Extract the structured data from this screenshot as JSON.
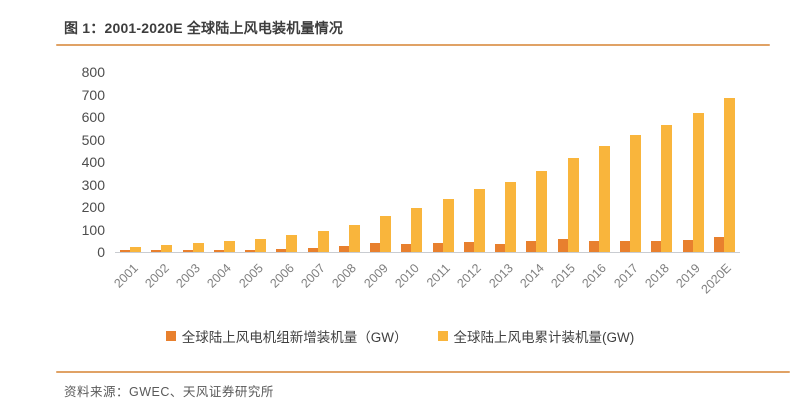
{
  "figure": {
    "title": "图 1：2001-2020E 全球陆上风电装机量情况",
    "source": "资料来源：GWEC、天风证券研究所",
    "rule_color": "#e0a265"
  },
  "chart_data": {
    "type": "bar",
    "title": "图 1：2001-2020E 全球陆上风电装机量情况",
    "categories": [
      "2001",
      "2002",
      "2003",
      "2004",
      "2005",
      "2006",
      "2007",
      "2008",
      "2009",
      "2010",
      "2011",
      "2012",
      "2013",
      "2014",
      "2015",
      "2016",
      "2017",
      "2018",
      "2019",
      "2020E"
    ],
    "series": [
      {
        "name": "全球陆上风电机组新增装机量（GW）",
        "color": "#e8802e",
        "values": [
          7,
          7,
          8,
          8,
          11,
          15,
          20,
          27,
          38,
          36,
          41,
          44,
          36,
          48,
          59,
          50,
          47,
          47,
          54,
          65
        ]
      },
      {
        "name": "全球陆上风电累计装机量(GW)",
        "color": "#f9b53c",
        "values": [
          24,
          31,
          39,
          48,
          59,
          74,
          94,
          121,
          159,
          195,
          234,
          278,
          312,
          361,
          420,
          470,
          520,
          565,
          620,
          685
        ]
      }
    ],
    "xlabel": "",
    "ylabel": "",
    "ylim": [
      0,
      800
    ],
    "yticks": [
      0,
      100,
      200,
      300,
      400,
      500,
      600,
      700,
      800
    ],
    "grid": false,
    "legend_position": "bottom",
    "axis_line_color": "#c9ccd1"
  }
}
